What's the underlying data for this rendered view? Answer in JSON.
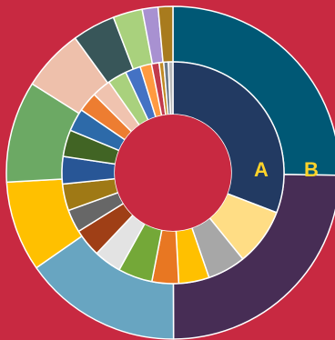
{
  "page": {
    "background": "#c82941"
  },
  "chart_data": {
    "type": "pie",
    "subtype": "double-doughnut",
    "title": "",
    "hole_color": "#c82941",
    "label_color": "#ffd32a",
    "rings": [
      {
        "name": "A",
        "label": "A",
        "position": "inner",
        "values": [
          27.8,
          7.5,
          5.0,
          4.0,
          3.5,
          4.5,
          3.6,
          3.7,
          3.0,
          3.5,
          3.6,
          3.5,
          3.0,
          2.6,
          2.5,
          2.5,
          2.0,
          1.5,
          1.0,
          0.6,
          0.6,
          0.6
        ],
        "colors": [
          "#223a62",
          "#ffdd85",
          "#a7a7a7",
          "#ffc000",
          "#e87722",
          "#74a838",
          "#e3e3e3",
          "#9f3f16",
          "#676767",
          "#9f7915",
          "#285696",
          "#416424",
          "#2d6aa9",
          "#ed7d31",
          "#f0c3af",
          "#a9d17d",
          "#4472c4",
          "#ff9a40",
          "#c23a4c",
          "#c08a24",
          "#6a7a8a",
          "#b7b7b7"
        ]
      },
      {
        "name": "B",
        "label": "B",
        "position": "outer",
        "values": [
          23.0,
          22.5,
          14.0,
          8.0,
          9.0,
          5.5,
          3.8,
          2.6,
          1.4,
          1.3
        ],
        "colors": [
          "#005875",
          "#472d55",
          "#68a5c1",
          "#ffc000",
          "#6ca964",
          "#eec0ab",
          "#385659",
          "#a9d17d",
          "#a891d1",
          "#a87b1e"
        ]
      }
    ]
  }
}
